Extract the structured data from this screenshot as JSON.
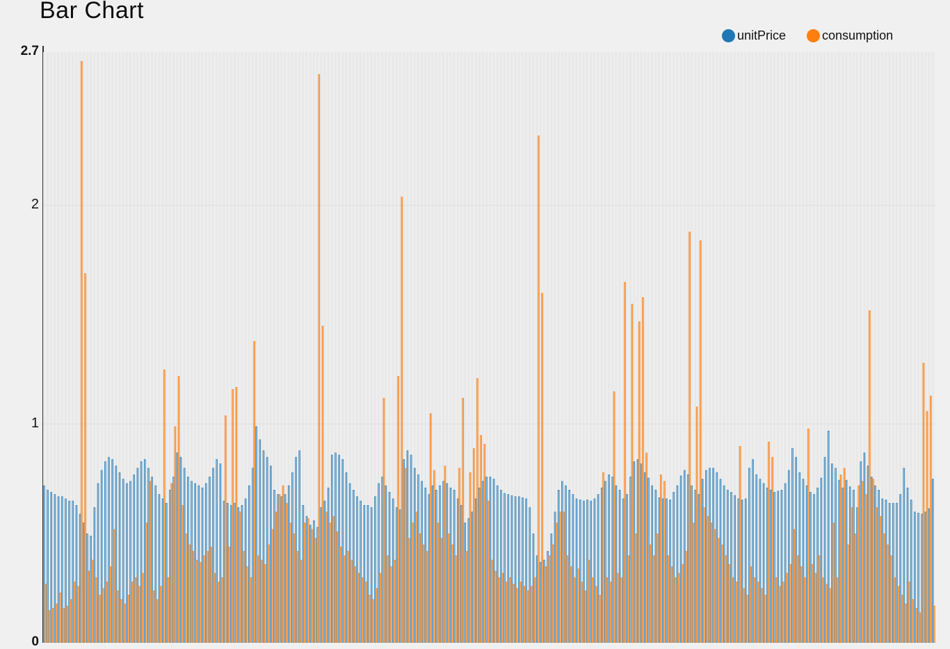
{
  "chart_data": {
    "type": "bar",
    "title": "Bar Chart",
    "legend_position": "top-right",
    "grid": "horizontal gridlines at y=1 and y=2, striped vertical category bands",
    "gridline_values": [
      1,
      2
    ],
    "ylim": [
      0,
      2.7
    ],
    "yticks": [
      {
        "label": "0",
        "value": 0,
        "bold": true
      },
      {
        "label": "1",
        "value": 1,
        "bold": false
      },
      {
        "label": "2",
        "value": 2,
        "bold": false
      },
      {
        "label": "2.7",
        "value": 2.7,
        "bold": true
      }
    ],
    "x_axis_labels_visible": false,
    "categories_count": 248,
    "series": [
      {
        "name": "unitPrice",
        "color": "#1f77b4",
        "fill_opacity": 0.35,
        "values": [
          0.72,
          0.7,
          0.69,
          0.68,
          0.67,
          0.67,
          0.66,
          0.65,
          0.65,
          0.63,
          0.59,
          0.55,
          0.5,
          0.49,
          0.62,
          0.73,
          0.79,
          0.83,
          0.85,
          0.84,
          0.81,
          0.78,
          0.75,
          0.73,
          0.74,
          0.77,
          0.8,
          0.83,
          0.84,
          0.8,
          0.76,
          0.72,
          0.68,
          0.66,
          0.64,
          0.7,
          0.76,
          0.87,
          0.85,
          0.8,
          0.76,
          0.74,
          0.73,
          0.72,
          0.71,
          0.73,
          0.76,
          0.8,
          0.84,
          0.82,
          0.65,
          0.64,
          0.63,
          0.64,
          0.62,
          0.63,
          0.66,
          0.72,
          0.8,
          0.99,
          0.93,
          0.88,
          0.85,
          0.81,
          0.7,
          0.68,
          0.67,
          0.68,
          0.72,
          0.78,
          0.85,
          0.88,
          0.63,
          0.58,
          0.54,
          0.56,
          0.53,
          0.62,
          0.65,
          0.71,
          0.86,
          0.87,
          0.86,
          0.84,
          0.78,
          0.73,
          0.7,
          0.67,
          0.65,
          0.63,
          0.63,
          0.62,
          0.67,
          0.73,
          0.76,
          0.72,
          0.69,
          0.66,
          0.62,
          0.61,
          0.84,
          0.88,
          0.86,
          0.8,
          0.77,
          0.74,
          0.71,
          0.68,
          0.72,
          0.7,
          0.72,
          0.74,
          0.73,
          0.71,
          0.7,
          0.66,
          0.63,
          0.55,
          0.57,
          0.6,
          0.66,
          0.71,
          0.74,
          0.76,
          0.76,
          0.75,
          0.72,
          0.7,
          0.685,
          0.68,
          0.675,
          0.67,
          0.67,
          0.665,
          0.66,
          0.62,
          0.5,
          0.4,
          0.37,
          0.38,
          0.42,
          0.5,
          0.6,
          0.7,
          0.74,
          0.72,
          0.7,
          0.68,
          0.66,
          0.655,
          0.65,
          0.655,
          0.65,
          0.66,
          0.68,
          0.71,
          0.74,
          0.77,
          0.76,
          0.72,
          0.7,
          0.66,
          0.68,
          0.76,
          0.83,
          0.84,
          0.82,
          0.78,
          0.755,
          0.72,
          0.7,
          0.665,
          0.66,
          0.66,
          0.655,
          0.69,
          0.72,
          0.765,
          0.79,
          0.77,
          0.72,
          0.7,
          0.68,
          0.75,
          0.79,
          0.8,
          0.8,
          0.78,
          0.75,
          0.72,
          0.7,
          0.69,
          0.675,
          0.66,
          0.655,
          0.66,
          0.8,
          0.84,
          0.77,
          0.75,
          0.73,
          0.71,
          0.7,
          0.69,
          0.695,
          0.7,
          0.73,
          0.79,
          0.89,
          0.85,
          0.78,
          0.75,
          0.72,
          0.69,
          0.68,
          0.71,
          0.755,
          0.85,
          0.97,
          0.82,
          0.8,
          0.745,
          0.71,
          0.745,
          0.715,
          0.7,
          0.62,
          0.83,
          0.87,
          0.81,
          0.76,
          0.72,
          0.7,
          0.66,
          0.655,
          0.64,
          0.64,
          0.64,
          0.68,
          0.8,
          0.71,
          0.655,
          0.6,
          0.595,
          0.59,
          0.6,
          0.615,
          0.75
        ]
      },
      {
        "name": "consumption",
        "color": "#ff7f0e",
        "fill_opacity": 0.55,
        "values": [
          0.27,
          0.15,
          0.16,
          0.18,
          0.23,
          0.16,
          0.17,
          0.2,
          0.28,
          0.26,
          2.66,
          1.69,
          0.33,
          0.38,
          0.3,
          0.22,
          0.25,
          0.28,
          0.35,
          0.52,
          0.24,
          0.2,
          0.18,
          0.22,
          0.28,
          0.3,
          0.26,
          0.32,
          0.55,
          0.74,
          0.24,
          0.2,
          0.26,
          1.25,
          0.3,
          0.73,
          0.99,
          1.22,
          0.63,
          0.5,
          0.45,
          0.42,
          0.38,
          0.37,
          0.4,
          0.42,
          0.44,
          0.32,
          0.28,
          0.3,
          1.04,
          0.44,
          1.16,
          1.17,
          0.6,
          0.42,
          0.35,
          0.3,
          1.38,
          0.4,
          0.38,
          0.36,
          0.45,
          0.52,
          0.6,
          0.68,
          0.72,
          0.64,
          0.55,
          0.5,
          0.42,
          0.38,
          0.55,
          0.57,
          0.52,
          0.48,
          2.6,
          1.45,
          0.6,
          0.55,
          0.58,
          0.51,
          0.44,
          0.4,
          0.42,
          0.38,
          0.35,
          0.32,
          0.3,
          0.28,
          0.22,
          0.2,
          0.25,
          0.32,
          1.12,
          0.4,
          0.35,
          0.38,
          1.22,
          2.04,
          0.8,
          0.48,
          0.55,
          0.6,
          0.5,
          0.45,
          0.42,
          1.05,
          0.79,
          0.55,
          0.48,
          0.81,
          0.5,
          0.45,
          0.4,
          0.8,
          1.12,
          0.42,
          0.78,
          0.89,
          1.21,
          0.95,
          0.91,
          0.65,
          0.38,
          0.33,
          0.3,
          0.32,
          0.28,
          0.3,
          0.27,
          0.25,
          0.28,
          0.26,
          0.24,
          0.26,
          0.3,
          2.32,
          1.6,
          0.35,
          0.4,
          0.45,
          0.55,
          0.6,
          0.6,
          0.4,
          0.35,
          0.3,
          0.34,
          0.28,
          0.24,
          0.38,
          0.3,
          0.26,
          0.22,
          0.78,
          0.3,
          0.28,
          1.15,
          0.32,
          0.3,
          1.65,
          0.4,
          1.55,
          0.5,
          1.47,
          1.58,
          0.87,
          0.45,
          0.4,
          0.5,
          0.77,
          0.74,
          0.4,
          0.35,
          0.3,
          0.32,
          0.36,
          0.42,
          1.88,
          0.55,
          1.08,
          1.84,
          0.62,
          0.58,
          0.55,
          0.52,
          0.48,
          0.45,
          0.4,
          0.36,
          0.3,
          0.28,
          0.9,
          0.25,
          0.22,
          0.35,
          0.3,
          0.28,
          0.25,
          0.22,
          0.92,
          0.85,
          0.3,
          0.26,
          0.28,
          0.32,
          0.36,
          0.52,
          0.4,
          0.35,
          0.3,
          0.98,
          0.36,
          0.32,
          0.4,
          0.3,
          0.27,
          0.25,
          0.55,
          0.3,
          0.77,
          0.8,
          0.45,
          0.62,
          0.5,
          0.72,
          0.74,
          0.68,
          1.52,
          0.75,
          0.62,
          0.58,
          0.5,
          0.45,
          0.4,
          0.3,
          0.26,
          0.22,
          0.18,
          0.28,
          0.2,
          0.16,
          0.14,
          1.28,
          1.06,
          1.13,
          0.17
        ]
      }
    ],
    "style": {
      "page_background": "#f0f0f0",
      "plot_stripe_dark": "#e8e8e8",
      "plot_stripe_light": "#eeeeee",
      "gridline_color": "#dedede",
      "axis_line_color": "#2e2e2e",
      "text_color": "#111111"
    }
  }
}
